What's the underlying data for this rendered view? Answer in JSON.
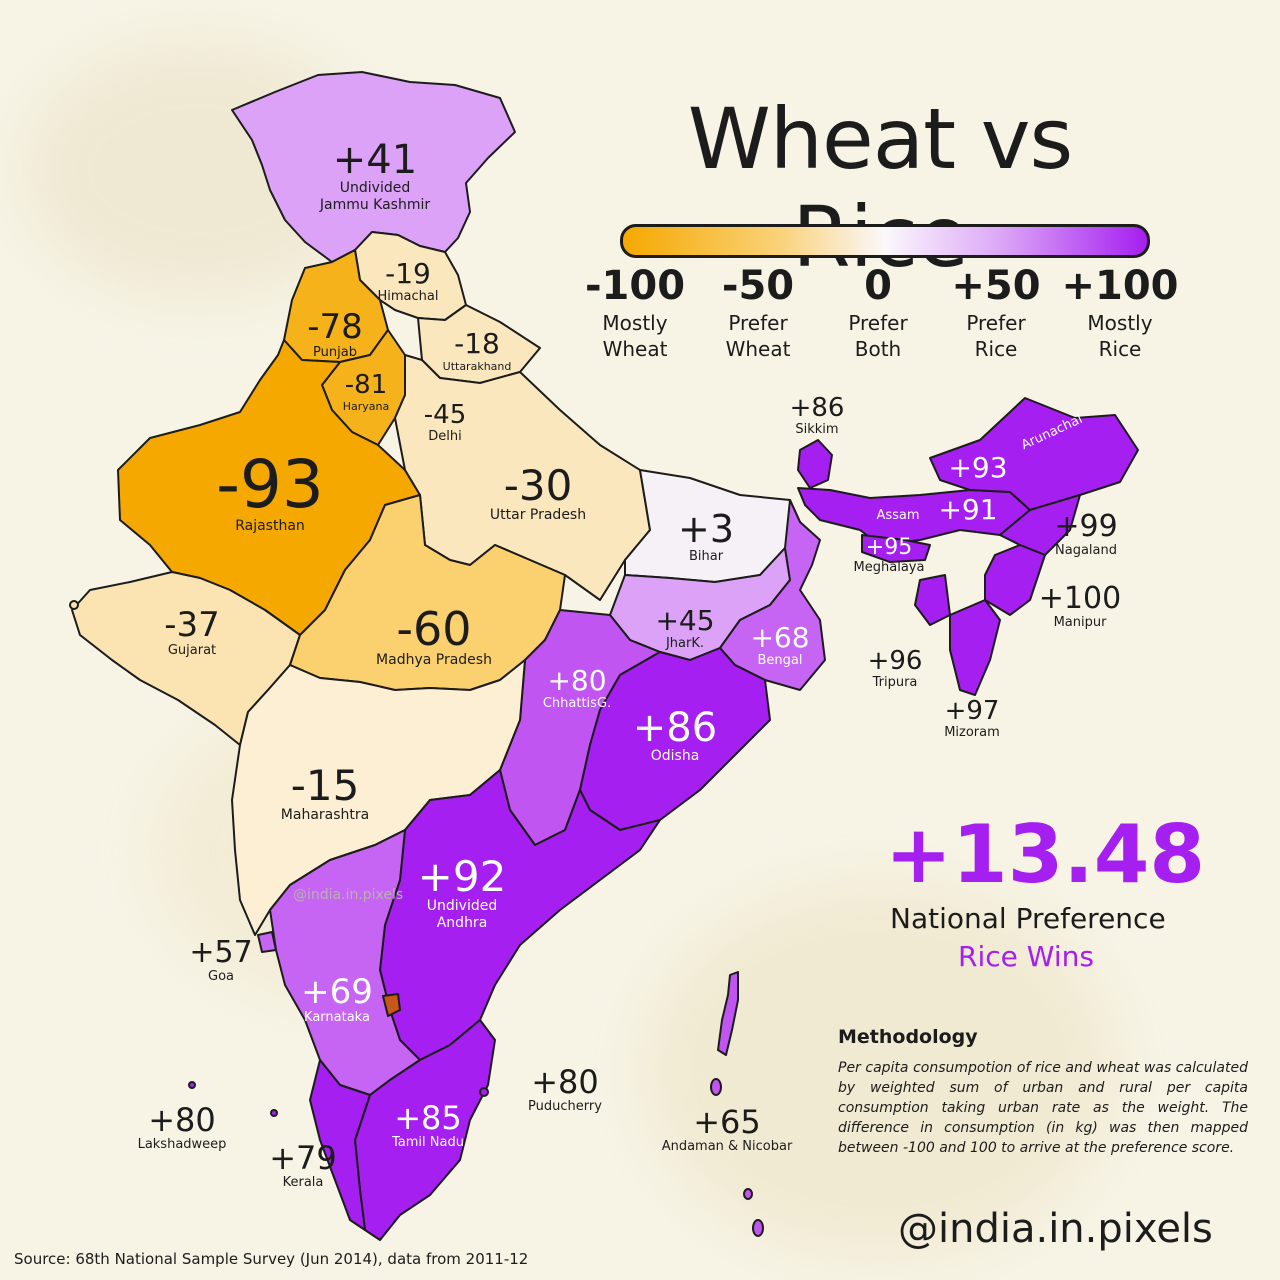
{
  "title": "Wheat vs Rice",
  "legend": [
    {
      "value": "-100",
      "label": "Mostly\nWheat"
    },
    {
      "value": "-50",
      "label": "Prefer\nWheat"
    },
    {
      "value": "0",
      "label": "Prefer\nBoth"
    },
    {
      "value": "+50",
      "label": "Prefer\nRice"
    },
    {
      "value": "+100",
      "label": "Mostly\nRice"
    }
  ],
  "colors": {
    "wheat_strong": "#f5a800",
    "wheat_mid": "#fbd06e",
    "wheat_light": "#fbe7be",
    "neutral": "#f6f1f6",
    "rice_light": "#dca2f7",
    "rice_mid": "#c664f3",
    "rice_strong": "#a51ff0",
    "ink": "#1c1c1c"
  },
  "regions": [
    {
      "id": "jk",
      "value": "+41",
      "name": "Undivided\nJammu Kashmir"
    },
    {
      "id": "himachal",
      "value": "-19",
      "name": "Himachal"
    },
    {
      "id": "punjab",
      "value": "-78",
      "name": "Punjab"
    },
    {
      "id": "uttarakhand",
      "value": "-18",
      "name": "Uttarakhand"
    },
    {
      "id": "haryana",
      "value": "-81",
      "name": "Haryana"
    },
    {
      "id": "delhi",
      "value": "-45",
      "name": "Delhi"
    },
    {
      "id": "rajasthan",
      "value": "-93",
      "name": "Rajasthan"
    },
    {
      "id": "up",
      "value": "-30",
      "name": "Uttar Pradesh"
    },
    {
      "id": "bihar",
      "value": "+3",
      "name": "Bihar"
    },
    {
      "id": "sikkim",
      "value": "+86",
      "name": "Sikkim"
    },
    {
      "id": "arunachal",
      "value": "+93",
      "name": "Arunachal"
    },
    {
      "id": "assam",
      "value": "+91",
      "name": "Assam"
    },
    {
      "id": "meghalaya",
      "value": "+95",
      "name": "Meghalaya"
    },
    {
      "id": "nagaland",
      "value": "+99",
      "name": "Nagaland"
    },
    {
      "id": "manipur",
      "value": "+100",
      "name": "Manipur"
    },
    {
      "id": "tripura",
      "value": "+96",
      "name": "Tripura"
    },
    {
      "id": "mizoram",
      "value": "+97",
      "name": "Mizoram"
    },
    {
      "id": "gujarat",
      "value": "-37",
      "name": "Gujarat"
    },
    {
      "id": "mp",
      "value": "-60",
      "name": "Madhya Pradesh"
    },
    {
      "id": "jharkhand",
      "value": "+45",
      "name": "JharK."
    },
    {
      "id": "bengal",
      "value": "+68",
      "name": "Bengal"
    },
    {
      "id": "chhattisgarh",
      "value": "+80",
      "name": "ChhattisG."
    },
    {
      "id": "odisha",
      "value": "+86",
      "name": "Odisha"
    },
    {
      "id": "maharashtra",
      "value": "-15",
      "name": "Maharashtra"
    },
    {
      "id": "andhra",
      "value": "+92",
      "name": "Undivided\nAndhra"
    },
    {
      "id": "goa",
      "value": "+57",
      "name": "Goa"
    },
    {
      "id": "karnataka",
      "value": "+69",
      "name": "Karnataka"
    },
    {
      "id": "puducherry",
      "value": "+80",
      "name": "Puducherry"
    },
    {
      "id": "tamilnadu",
      "value": "+85",
      "name": "Tamil Nadu"
    },
    {
      "id": "lakshadweep",
      "value": "+80",
      "name": "Lakshadweep"
    },
    {
      "id": "kerala",
      "value": "+79",
      "name": "Kerala"
    },
    {
      "id": "andaman",
      "value": "+65",
      "name": "Andaman & Nicobar"
    }
  ],
  "national": {
    "score": "+13.48",
    "label": "National Preference",
    "result": "Rice Wins"
  },
  "methodology": {
    "title": "Methodology",
    "text": "Per capita consumpotion of rice and wheat was calculated by weighted sum of urban and rural per capita consumption taking urban rate as the weight. The difference in consumption (in kg) was then mapped between -100 and 100 to arrive at the preference score."
  },
  "watermark": "@india.in.pixels",
  "handle": "@india.in.pixels",
  "source": "Source: 68th National Sample Survey (Jun 2014), data from 2011-12"
}
